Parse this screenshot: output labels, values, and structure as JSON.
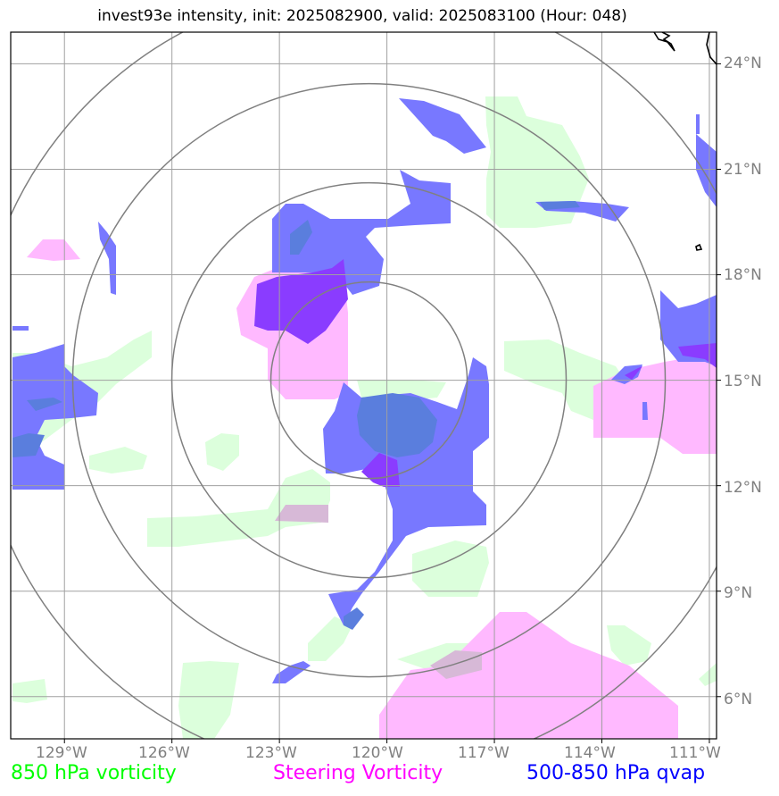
{
  "title": "invest93e intensity, init: 2025082900, valid: 2025083100 (Hour: 048)",
  "axes": {
    "lon_labels": [
      "129°W",
      "126°W",
      "123°W",
      "120°W",
      "117°W",
      "114°W",
      "111°W"
    ],
    "lat_labels": [
      "24°N",
      "21°N",
      "18°N",
      "15°N",
      "12°N",
      "9°N",
      "6°N"
    ],
    "lon_range": [
      -130.5,
      -110.8
    ],
    "lat_range": [
      4.8,
      24.9
    ],
    "grid": true,
    "tick_color": "#808080"
  },
  "center": {
    "lon": -120.5,
    "lat": 15.0
  },
  "range_rings": {
    "count": 4,
    "color": "#808080"
  },
  "legend": [
    {
      "label": "850 hPa vorticity",
      "color": "#00ff00"
    },
    {
      "label": "Steering Vorticity",
      "color": "#ff00ff"
    },
    {
      "label": "500-850 hPa qvap",
      "color": "#0000ff"
    }
  ],
  "layer_colors": {
    "green": "#dcffdc",
    "pink": "#ffb9ff",
    "blue": "#7878ff",
    "darkblue": "#5a7edd",
    "purple": "#8a3cff",
    "mauve": "#d7b9d7"
  }
}
